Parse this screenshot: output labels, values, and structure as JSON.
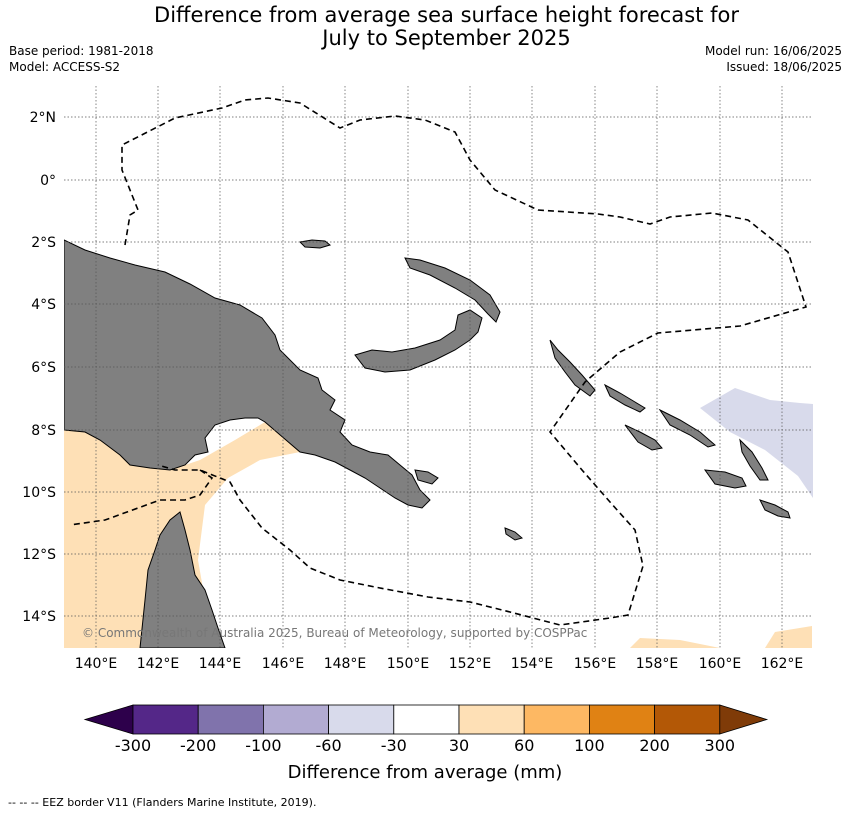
{
  "title_line1": "Difference from average sea surface height forecast for",
  "title_line2": "July to September 2025",
  "meta": {
    "base_period": "Base period: 1981-2018",
    "model": "Model: ACCESS-S2",
    "model_run": "Model run: 16/06/2025",
    "issued": "Issued: 18/06/2025"
  },
  "map": {
    "lat_labels": [
      "2°N",
      "0°",
      "2°S",
      "4°S",
      "6°S",
      "8°S",
      "10°S",
      "12°S",
      "14°S"
    ],
    "lon_labels": [
      "140°E",
      "142°E",
      "144°E",
      "146°E",
      "148°E",
      "150°E",
      "152°E",
      "154°E",
      "156°E",
      "158°E",
      "160°E",
      "162°E"
    ],
    "copyright": "© Commonwealth of Australia 2025, Bureau of Meteorology, supported by COSPPac",
    "colors": {
      "land": "#808080",
      "ocean": "#ffffff",
      "grid": "#555555"
    }
  },
  "colorbar": {
    "labels": [
      "-300",
      "-200",
      "-100",
      "-60",
      "-30",
      "30",
      "60",
      "100",
      "200",
      "300"
    ],
    "colors": [
      "#2d004b",
      "#542788",
      "#8073ac",
      "#b2abd2",
      "#d8daeb",
      "#ffffff",
      "#fee0b6",
      "#fdb863",
      "#e08214",
      "#b35806",
      "#7f3b08"
    ],
    "title": "Difference from average (mm)",
    "units": "mm"
  },
  "footer": "-- -- -- EEZ border V11 (Flanders Marine Institute, 2019)."
}
